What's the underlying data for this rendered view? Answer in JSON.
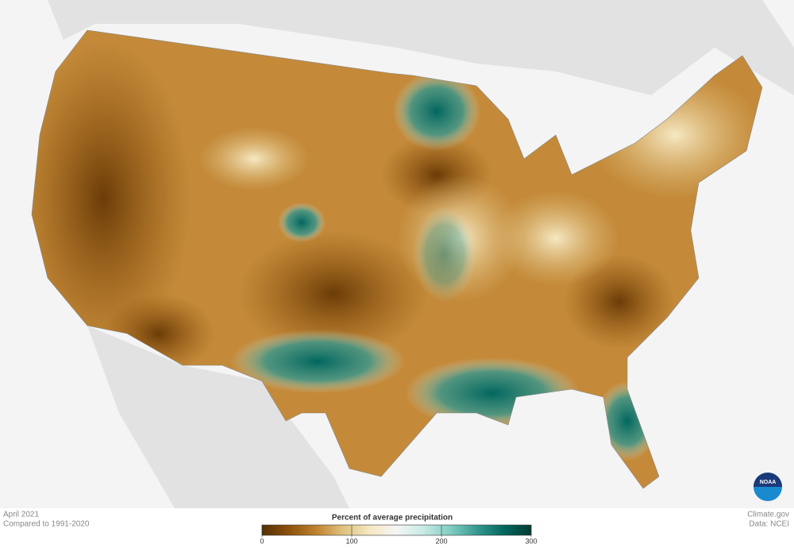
{
  "header": {
    "period": "April 2021",
    "baseline": "Compared to 1991-2020"
  },
  "legend": {
    "title": "Percent of average precipitation",
    "range": [
      0,
      300
    ],
    "ticks": [
      0,
      100,
      200,
      300
    ],
    "colors": [
      "#543005",
      "#8c510a",
      "#bf812d",
      "#dfc27d",
      "#f6e8c3",
      "#f5f5f5",
      "#c7eae5",
      "#80cdc1",
      "#35978f",
      "#01665e",
      "#003c30"
    ]
  },
  "credits": {
    "site": "Climate.gov",
    "source": "Data: NCEI",
    "logo": "NOAA"
  }
}
